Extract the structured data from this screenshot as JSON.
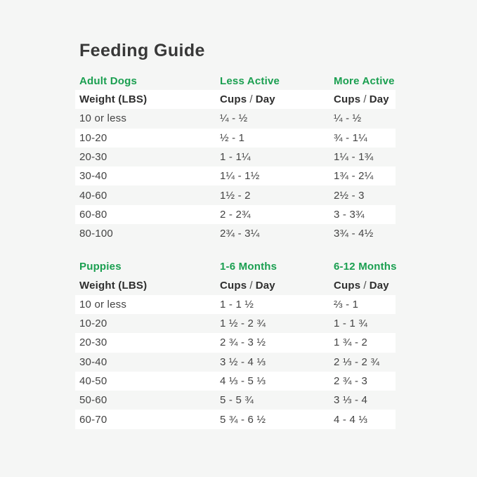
{
  "page": {
    "title": "Feeding Guide"
  },
  "colors": {
    "accent_green": "#1a9f50",
    "background": "#f5f6f5",
    "stripe_white": "#ffffff",
    "text_dark": "#2e2e2e",
    "text_body": "#434343"
  },
  "tables": [
    {
      "section": "Adult Dogs",
      "col2": "Less Active",
      "col3": "More Active",
      "header": {
        "weight": "Weight (LBS)",
        "cups": "Cups",
        "slash": "/",
        "day": "Day"
      },
      "rows": [
        {
          "weight": "10 or less",
          "c2": "¼ - ½",
          "c3": "¼ - ½"
        },
        {
          "weight": "10-20",
          "c2": "½ - 1",
          "c3": "¾ - 1¼"
        },
        {
          "weight": "20-30",
          "c2": "1 - 1¼",
          "c3": "1¼ - 1¾"
        },
        {
          "weight": "30-40",
          "c2": "1¼ - 1½",
          "c3": "1¾ - 2¼"
        },
        {
          "weight": "40-60",
          "c2": "1½ - 2",
          "c3": "2½ - 3"
        },
        {
          "weight": "60-80",
          "c2": "2 - 2¾",
          "c3": "3 - 3¾"
        },
        {
          "weight": "80-100",
          "c2": "2¾ - 3¼",
          "c3": "3¾ - 4½"
        }
      ]
    },
    {
      "section": "Puppies",
      "col2": "1-6 Months",
      "col3": "6-12 Months",
      "header": {
        "weight": "Weight (LBS)",
        "cups": "Cups",
        "slash": "/",
        "day": "Day"
      },
      "rows": [
        {
          "weight": "10 or less",
          "c2": "1 - 1 ½",
          "c3": "⅔ - 1"
        },
        {
          "weight": "10-20",
          "c2": "1 ½ - 2 ¾",
          "c3": "1 - 1 ¾"
        },
        {
          "weight": "20-30",
          "c2": "2 ¾ - 3 ½",
          "c3": "1 ¾ - 2"
        },
        {
          "weight": "30-40",
          "c2": "3 ½ - 4 ⅓",
          "c3": "2 ⅓ - 2 ¾"
        },
        {
          "weight": "40-50",
          "c2": "4 ⅓ - 5 ⅓",
          "c3": "2 ¾ - 3"
        },
        {
          "weight": "50-60",
          "c2": "5 - 5 ¾",
          "c3": "3 ⅓ - 4"
        },
        {
          "weight": "60-70",
          "c2": "5 ¾ - 6 ½",
          "c3": "4 - 4 ⅓"
        }
      ]
    }
  ]
}
